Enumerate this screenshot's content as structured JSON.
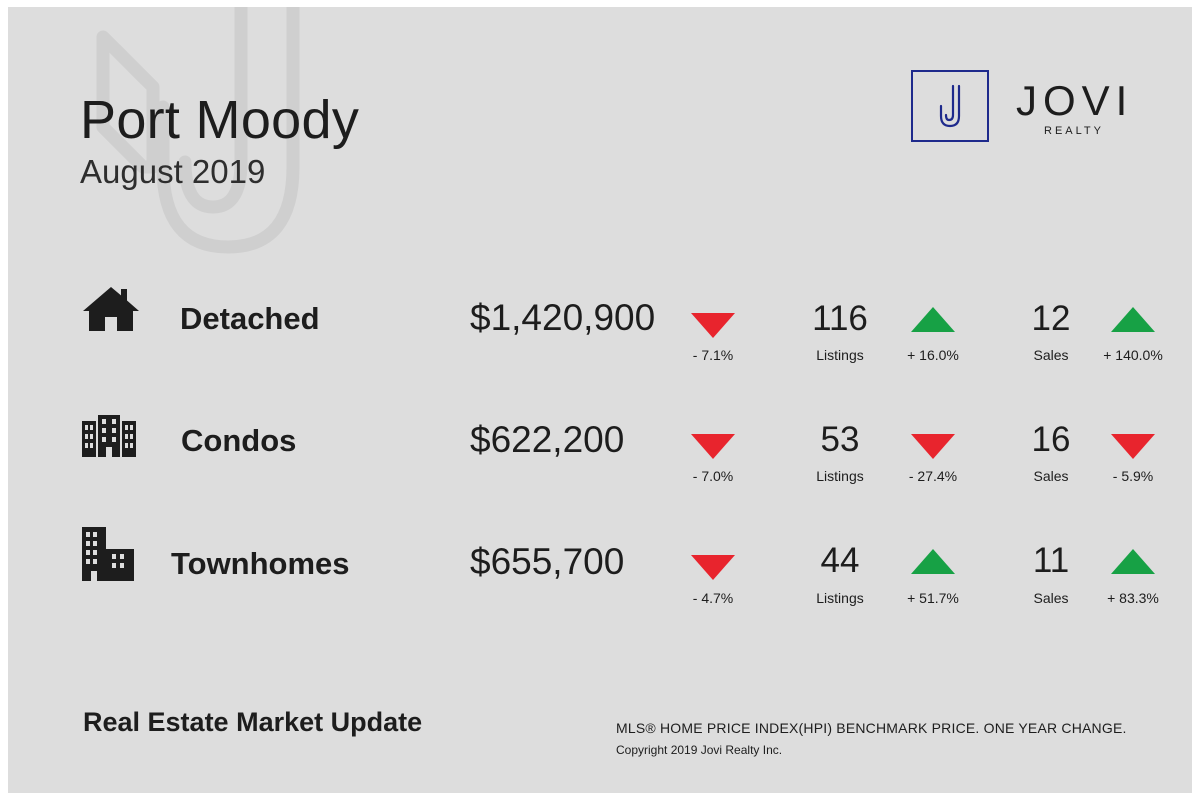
{
  "header": {
    "title": "Port Moody",
    "subtitle": "August 2019"
  },
  "logo": {
    "brand": "JOVI",
    "brand_sub": "REALTY",
    "mark_letter": "J",
    "color": "#1e2a8c"
  },
  "colors": {
    "down": "#e8242d",
    "up": "#17a145",
    "background": "#dddddd"
  },
  "rows": [
    {
      "icon": "house-icon",
      "name": "Detached",
      "price": "$1,420,900",
      "price_change": "- 7.1%",
      "price_dir": "down",
      "listings": "116",
      "listings_label": "Listings",
      "listings_change": "+ 16.0%",
      "listings_dir": "up",
      "sales": "12",
      "sales_label": "Sales",
      "sales_change": "+ 140.0%",
      "sales_dir": "up"
    },
    {
      "icon": "condo-building-icon",
      "name": "Condos",
      "price": "$622,200",
      "price_change": "- 7.0%",
      "price_dir": "down",
      "listings": "53",
      "listings_label": "Listings",
      "listings_change": "- 27.4%",
      "listings_dir": "down",
      "sales": "16",
      "sales_label": "Sales",
      "sales_change": "- 5.9%",
      "sales_dir": "down"
    },
    {
      "icon": "townhome-buildings-icon",
      "name": "Townhomes",
      "price": "$655,700",
      "price_change": "- 4.7%",
      "price_dir": "down",
      "listings": "44",
      "listings_label": "Listings",
      "listings_change": "+ 51.7%",
      "listings_dir": "up",
      "sales": "11",
      "sales_label": "Sales",
      "sales_change": "+ 83.3%",
      "sales_dir": "up"
    }
  ],
  "footer": {
    "title": "Real Estate Market Update",
    "note": "MLS® HOME PRICE INDEX(HPI) BENCHMARK PRICE.   ONE YEAR CHANGE.",
    "copyright": "Copyright 2019 Jovi Realty Inc."
  }
}
